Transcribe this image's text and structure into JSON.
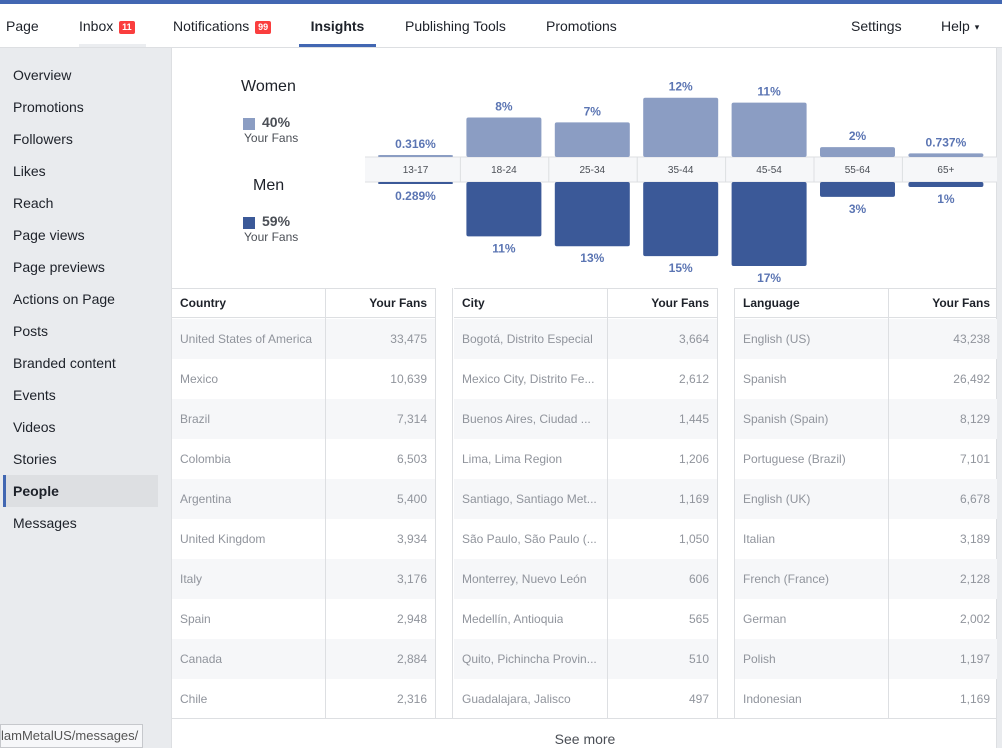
{
  "nav": {
    "tabs": [
      {
        "label": "Page"
      },
      {
        "label": "Inbox",
        "badge": "11"
      },
      {
        "label": "Notifications",
        "badge": "99"
      },
      {
        "label": "Insights"
      },
      {
        "label": "Publishing Tools"
      },
      {
        "label": "Promotions"
      }
    ],
    "settings": "Settings",
    "help": "Help",
    "help_caret": "▾"
  },
  "sidebar": {
    "items": [
      {
        "label": "Overview"
      },
      {
        "label": "Promotions"
      },
      {
        "label": "Followers"
      },
      {
        "label": "Likes"
      },
      {
        "label": "Reach"
      },
      {
        "label": "Page views"
      },
      {
        "label": "Page previews"
      },
      {
        "label": "Actions on Page"
      },
      {
        "label": "Posts"
      },
      {
        "label": "Branded content"
      },
      {
        "label": "Events"
      },
      {
        "label": "Videos"
      },
      {
        "label": "Stories"
      },
      {
        "label": "People"
      },
      {
        "label": "Messages"
      }
    ],
    "active": "People"
  },
  "status_url": "lamMetalUS/messages/",
  "gender": {
    "women": {
      "title": "Women",
      "pct": "40%",
      "sub": "Your Fans"
    },
    "men": {
      "title": "Men",
      "pct": "59%",
      "sub": "Your Fans"
    }
  },
  "colors": {
    "women": "#8b9dc3",
    "men": "#3b5998",
    "label": "#5b75b3",
    "accent": "#4267b2"
  },
  "chart_data": {
    "type": "bar",
    "categories": [
      "13-17",
      "18-24",
      "25-34",
      "35-44",
      "45-54",
      "55-64",
      "65+"
    ],
    "series": [
      {
        "name": "Women",
        "values": [
          0.316,
          8,
          7,
          12,
          11,
          2,
          0.737
        ],
        "labels": [
          "0.316%",
          "8%",
          "7%",
          "12%",
          "11%",
          "2%",
          "0.737%"
        ]
      },
      {
        "name": "Men",
        "values": [
          0.289,
          11,
          13,
          15,
          17,
          3,
          1
        ],
        "labels": [
          "0.289%",
          "11%",
          "13%",
          "15%",
          "17%",
          "3%",
          "1%"
        ]
      }
    ],
    "ylim": [
      0,
      17
    ]
  },
  "tables": {
    "country": {
      "headers": [
        "Country",
        "Your Fans"
      ],
      "rows": [
        [
          "United States of America",
          "33,475"
        ],
        [
          "Mexico",
          "10,639"
        ],
        [
          "Brazil",
          "7,314"
        ],
        [
          "Colombia",
          "6,503"
        ],
        [
          "Argentina",
          "5,400"
        ],
        [
          "United Kingdom",
          "3,934"
        ],
        [
          "Italy",
          "3,176"
        ],
        [
          "Spain",
          "2,948"
        ],
        [
          "Canada",
          "2,884"
        ],
        [
          "Chile",
          "2,316"
        ]
      ]
    },
    "city": {
      "headers": [
        "City",
        "Your Fans"
      ],
      "rows": [
        [
          "Bogotá, Distrito Especial",
          "3,664"
        ],
        [
          "Mexico City, Distrito Fe...",
          "2,612"
        ],
        [
          "Buenos Aires, Ciudad ...",
          "1,445"
        ],
        [
          "Lima, Lima Region",
          "1,206"
        ],
        [
          "Santiago, Santiago Met...",
          "1,169"
        ],
        [
          "São Paulo, São Paulo (...",
          "1,050"
        ],
        [
          "Monterrey, Nuevo León",
          "606"
        ],
        [
          "Medellín, Antioquia",
          "565"
        ],
        [
          "Quito, Pichincha Provin...",
          "510"
        ],
        [
          "Guadalajara, Jalisco",
          "497"
        ]
      ]
    },
    "language": {
      "headers": [
        "Language",
        "Your Fans"
      ],
      "rows": [
        [
          "English (US)",
          "43,238"
        ],
        [
          "Spanish",
          "26,492"
        ],
        [
          "Spanish (Spain)",
          "8,129"
        ],
        [
          "Portuguese (Brazil)",
          "7,101"
        ],
        [
          "English (UK)",
          "6,678"
        ],
        [
          "Italian",
          "3,189"
        ],
        [
          "French (France)",
          "2,128"
        ],
        [
          "German",
          "2,002"
        ],
        [
          "Polish",
          "1,197"
        ],
        [
          "Indonesian",
          "1,169"
        ]
      ]
    }
  },
  "see_more": "See more"
}
